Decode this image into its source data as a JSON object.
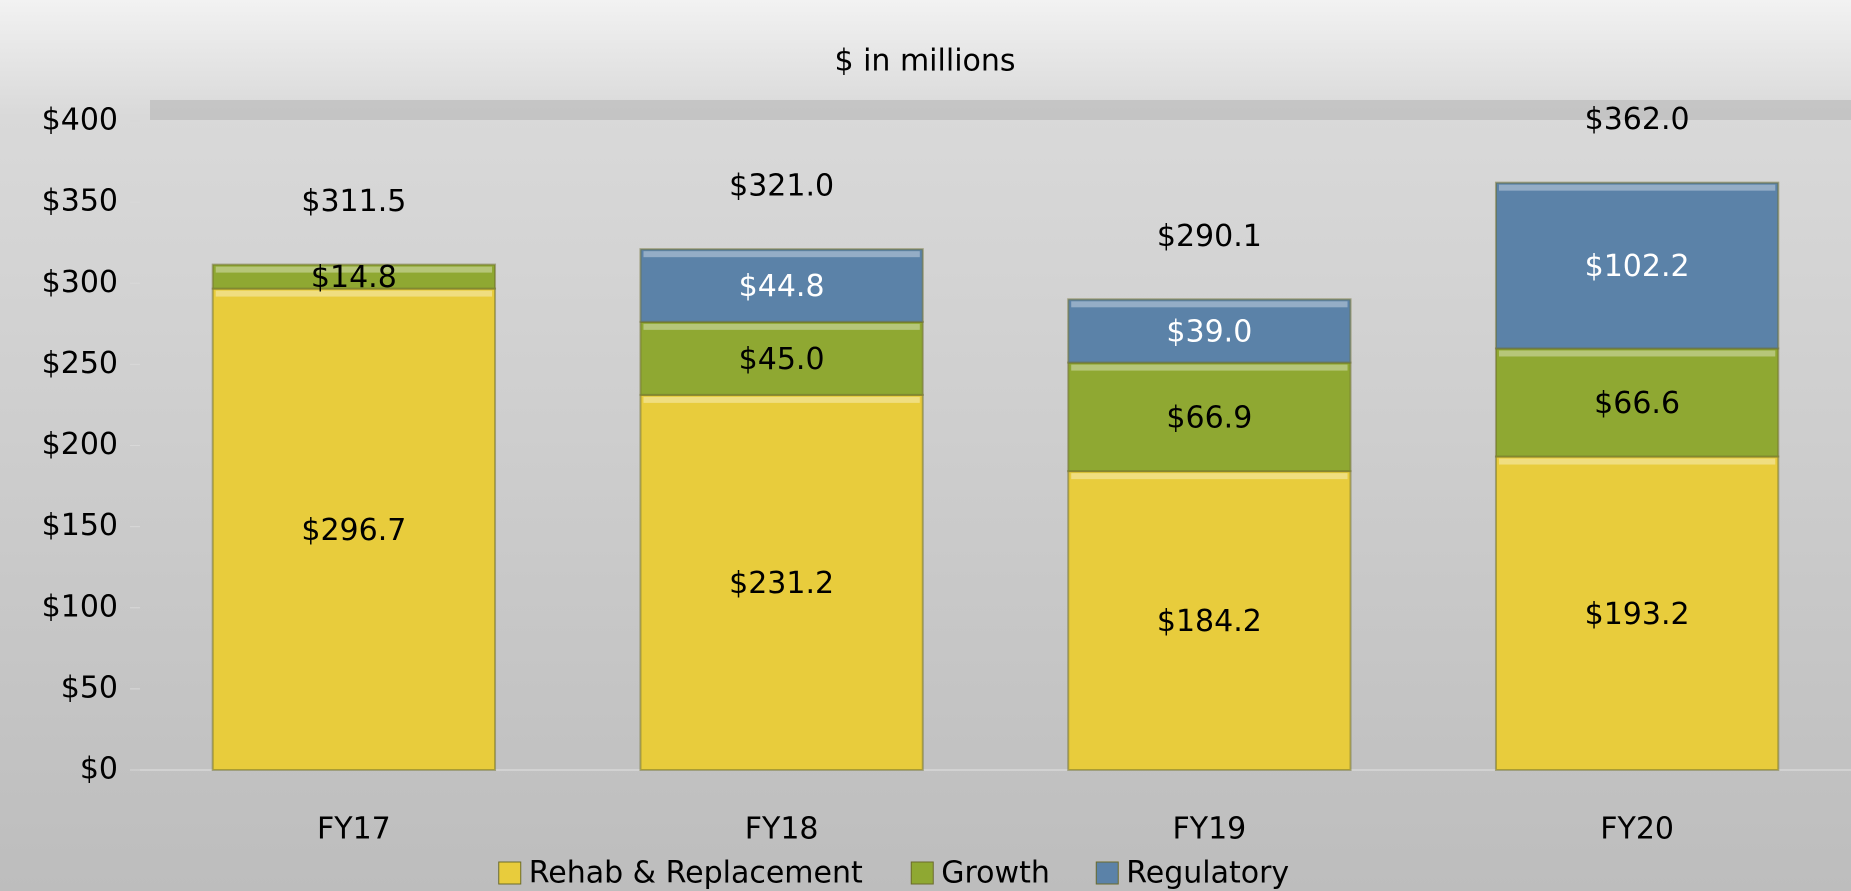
{
  "chart_data": {
    "type": "stacked-bar",
    "title": "$ in millions",
    "categories": [
      "FY17",
      "FY18",
      "FY19",
      "FY20"
    ],
    "series": [
      {
        "name": "Rehab & Replacement",
        "color": "#e8cc3c",
        "label_color": "#000000",
        "values": [
          296.7,
          231.2,
          184.2,
          193.2
        ],
        "value_labels": [
          "$296.7",
          "$231.2",
          "$184.2",
          "$193.2"
        ]
      },
      {
        "name": "Growth",
        "color": "#8fa832",
        "label_color": "#000000",
        "values": [
          14.8,
          45.0,
          66.9,
          66.6
        ],
        "value_labels": [
          "$14.8",
          "$45.0",
          "$66.9",
          "$66.6"
        ]
      },
      {
        "name": "Regulatory",
        "color": "#5b82a8",
        "label_color": "#ffffff",
        "values": [
          null,
          44.8,
          39.0,
          102.2
        ],
        "value_labels": [
          null,
          "$44.8",
          "$39.0",
          "$102.2"
        ]
      }
    ],
    "totals": {
      "values": [
        311.5,
        321.0,
        290.1,
        362.0
      ],
      "value_labels": [
        "$311.5",
        "$321.0",
        "$290.1",
        "$362.0"
      ]
    },
    "ylim": [
      0,
      400
    ],
    "yticks": [
      {
        "value": 0,
        "label": "$0"
      },
      {
        "value": 50,
        "label": "$50"
      },
      {
        "value": 100,
        "label": "$100"
      },
      {
        "value": 150,
        "label": "$150"
      },
      {
        "value": 200,
        "label": "$200"
      },
      {
        "value": 250,
        "label": "$250"
      },
      {
        "value": 300,
        "label": "$300"
      },
      {
        "value": 350,
        "label": "$350"
      },
      {
        "value": 400,
        "label": "$400"
      }
    ],
    "legend": "bottom"
  }
}
